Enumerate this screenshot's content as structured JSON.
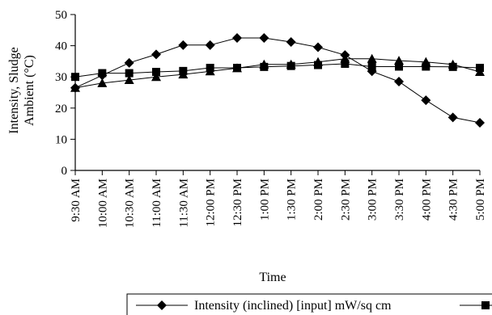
{
  "chart_data": {
    "type": "line",
    "xlabel": "Time",
    "ylabel_lines": [
      "Intensity, Sludge",
      "Ambient (°C)"
    ],
    "ylim": [
      0,
      50
    ],
    "yticks": [
      0,
      10,
      20,
      30,
      40,
      50
    ],
    "grid": false,
    "legend_position": "bottom",
    "categories": [
      "9:30 AM",
      "10:00 AM",
      "10:30 AM",
      "11:00 AM",
      "11:30 AM",
      "12:00 PM",
      "12:30 PM",
      "1:00 PM",
      "1:30 PM",
      "2:00 PM",
      "2:30 PM",
      "3:00 PM",
      "3:30 PM",
      "4:00 PM",
      "4:30 PM",
      "5:00 PM"
    ],
    "series": [
      {
        "name": "Intensity (inclined) [input] mW/sq cm",
        "marker": "diamond",
        "color": "#000000",
        "values": [
          26.5,
          30.5,
          34.5,
          37.2,
          40.2,
          40.2,
          42.5,
          42.5,
          41.2,
          39.5,
          37.0,
          31.8,
          28.5,
          22.5,
          17.0,
          15.3
        ]
      },
      {
        "name": "",
        "marker": "square",
        "color": "#000000",
        "values": [
          30.0,
          31.2,
          31.2,
          31.6,
          31.9,
          32.9,
          32.9,
          33.2,
          33.5,
          33.8,
          34.2,
          33.3,
          33.3,
          33.3,
          33.2,
          32.9
        ]
      },
      {
        "name": "",
        "marker": "triangle",
        "color": "#000000",
        "values": [
          26.5,
          28.0,
          29.0,
          30.0,
          30.8,
          31.8,
          32.8,
          34.0,
          34.0,
          34.8,
          35.8,
          35.8,
          35.2,
          34.8,
          34.0,
          31.6
        ]
      }
    ]
  }
}
